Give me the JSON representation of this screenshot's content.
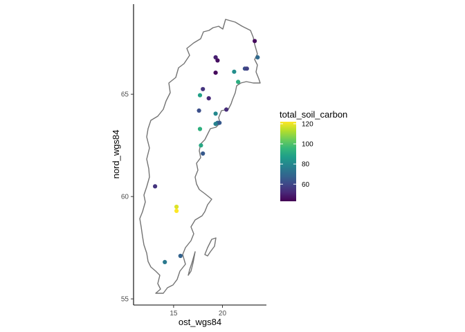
{
  "chart_data": {
    "type": "scatter",
    "xlabel": "ost_wgs84",
    "ylabel": "nord_wgs84",
    "xlim": [
      10.9,
      24.5
    ],
    "ylim": [
      54.7,
      69.4
    ],
    "x_ticks": [
      15,
      20
    ],
    "y_ticks": [
      55,
      60,
      65
    ],
    "x_tick_labels": [
      "15",
      "20"
    ],
    "y_tick_labels": [
      "55",
      "60",
      "65"
    ],
    "legend": {
      "title": "total_soil_carbon",
      "placement": "right",
      "range": [
        43,
        122
      ],
      "ticks": [
        60,
        80,
        100,
        120
      ],
      "tick_labels": [
        "60",
        "80",
        "100",
        "120"
      ]
    },
    "colormap": [
      "#440154",
      "#482878",
      "#3E4A89",
      "#31688E",
      "#26828E",
      "#1F9E89",
      "#35B779",
      "#6DCD59",
      "#B4DE2C",
      "#FDE725"
    ],
    "outline_color": "#737373",
    "points": [
      {
        "x": 23.3,
        "y": 67.6,
        "v": 45
      },
      {
        "x": 23.6,
        "y": 66.8,
        "v": 70
      },
      {
        "x": 19.3,
        "y": 66.8,
        "v": 50
      },
      {
        "x": 19.5,
        "y": 66.65,
        "v": 46
      },
      {
        "x": 22.3,
        "y": 66.25,
        "v": 62
      },
      {
        "x": 22.5,
        "y": 66.25,
        "v": 58
      },
      {
        "x": 21.2,
        "y": 66.1,
        "v": 82
      },
      {
        "x": 19.3,
        "y": 66.05,
        "v": 45
      },
      {
        "x": 21.6,
        "y": 65.6,
        "v": 92
      },
      {
        "x": 18.0,
        "y": 65.25,
        "v": 55
      },
      {
        "x": 17.7,
        "y": 64.95,
        "v": 88
      },
      {
        "x": 18.6,
        "y": 64.8,
        "v": 52
      },
      {
        "x": 20.4,
        "y": 64.25,
        "v": 53
      },
      {
        "x": 17.6,
        "y": 64.2,
        "v": 62
      },
      {
        "x": 19.3,
        "y": 64.05,
        "v": 80
      },
      {
        "x": 19.5,
        "y": 63.6,
        "v": 70
      },
      {
        "x": 19.7,
        "y": 63.6,
        "v": 65
      },
      {
        "x": 19.3,
        "y": 63.55,
        "v": 78
      },
      {
        "x": 17.7,
        "y": 63.3,
        "v": 93
      },
      {
        "x": 17.8,
        "y": 62.5,
        "v": 90
      },
      {
        "x": 18.0,
        "y": 62.1,
        "v": 65
      },
      {
        "x": 13.1,
        "y": 60.5,
        "v": 55
      },
      {
        "x": 15.3,
        "y": 59.5,
        "v": 118
      },
      {
        "x": 15.3,
        "y": 59.3,
        "v": 122
      },
      {
        "x": 15.7,
        "y": 57.1,
        "v": 68
      },
      {
        "x": 14.1,
        "y": 56.8,
        "v": 75
      }
    ]
  }
}
